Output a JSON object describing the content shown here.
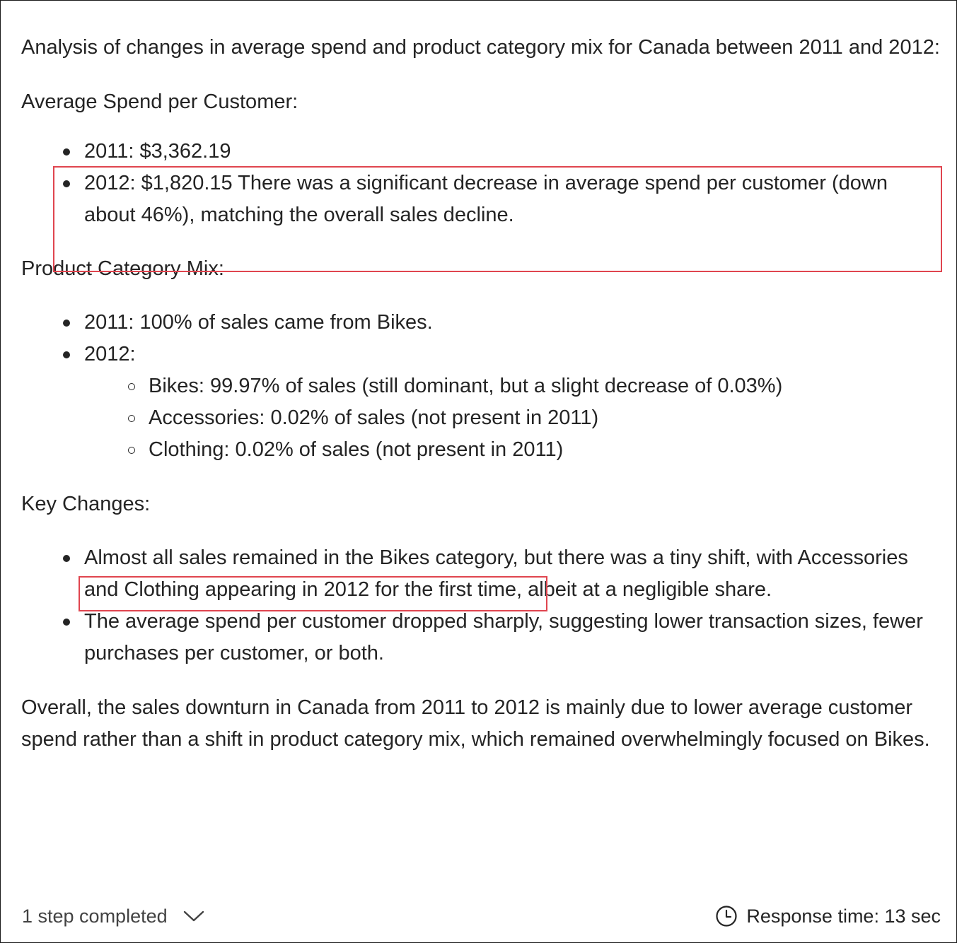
{
  "intro": "Analysis of changes in average spend and product category mix for Canada between 2011 and 2012:",
  "avg_spend": {
    "heading": "Average Spend per Customer:",
    "items": [
      "2011: $3,362.19",
      "2012: $1,820.15 There was a significant decrease in average spend per customer (down about 46%), matching the overall sales decline."
    ]
  },
  "category_mix": {
    "heading": "Product Category Mix:",
    "item_2011": "2011: 100% of sales came from Bikes.",
    "item_2012": "2012:",
    "sub_items": [
      "Bikes: 99.97% of sales (still dominant, but a slight decrease of 0.03%)",
      "Accessories: 0.02% of sales (not present in 2011)",
      "Clothing: 0.02% of sales (not present in 2011)"
    ]
  },
  "key_changes": {
    "heading": "Key Changes:",
    "item1_highlight": "Almost all sales remained in the Bikes category",
    "item1_rest": ", but there was a tiny shift, with Accessories and Clothing appearing in 2012 for the first time, albeit at a negligible share.",
    "item2": "The average spend per customer dropped sharply, suggesting lower transaction sizes, fewer purchases per customer, or both."
  },
  "conclusion": "Overall, the sales downturn in Canada from 2011 to 2012 is mainly due to lower average customer spend rather than a shift in product category mix, which remained overwhelmingly focused on Bikes.",
  "footer": {
    "steps_label": "1 step completed",
    "response_time": "Response time: 13 sec"
  },
  "colors": {
    "highlight_border": "#e0454f",
    "text": "#242424"
  },
  "icons": {
    "expand": "chevron-down-icon",
    "time": "clock-icon"
  }
}
